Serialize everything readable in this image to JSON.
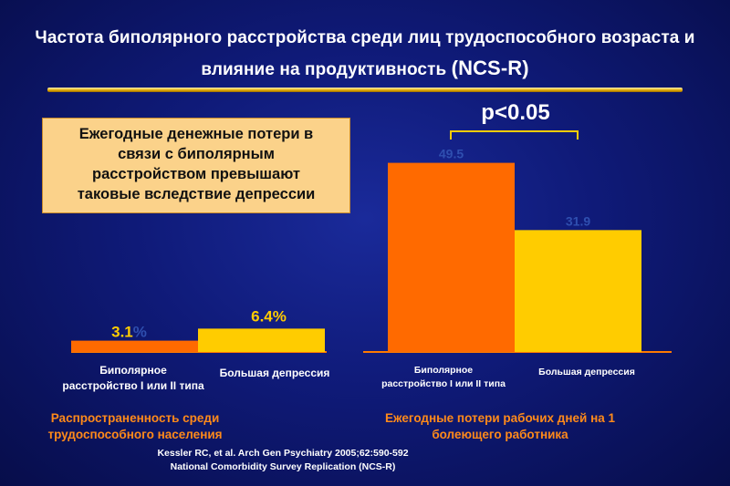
{
  "title": {
    "line1": "Частота биполярного расстройства среди лиц трудоспособного возраста и",
    "line2": "влияние на продуктивность",
    "source_tag": "(NCS-R)"
  },
  "callout": {
    "line1": "Ежегодные денежные потери в",
    "line2": "связи с биполярным",
    "line3": "расстройством превышают",
    "line4": "таковые вследствие депрессии"
  },
  "p_value": "p<0.05",
  "colors": {
    "bipolar": "#ff6a00",
    "depression": "#ffcc00",
    "axis": "#ff7a00",
    "label_dark": "#2f4fb0"
  },
  "chart_data": [
    {
      "type": "bar",
      "categories": [
        "Биполярное расстройство I или II типа",
        "Большая депрессия"
      ],
      "values": [
        3.1,
        6.4
      ],
      "data_labels": [
        "3.1%",
        "6.4%"
      ],
      "title": "Распространенность среди трудоспособного населения",
      "unit": "%"
    },
    {
      "type": "bar",
      "categories": [
        "Биполярное расстройство I или II типа",
        "Большая депрессия"
      ],
      "values": [
        49.5,
        31.9
      ],
      "data_labels": [
        "49.5",
        "31.9"
      ],
      "title": "Ежегодные потери рабочих дней на 1 болеющего работника"
    }
  ],
  "categories_text": {
    "left_bipolar_l1": "Биполярное",
    "left_bipolar_l2": "расстройство I или II типа",
    "left_depression": "Большая депрессия",
    "right_bipolar_l1": "Биполярное",
    "right_bipolar_l2": "расстройство I или II типа",
    "right_depression": "Большая депрессия"
  },
  "group_labels": {
    "left_l1": "Распространенность  среди",
    "left_l2": "трудоспособного населения",
    "right_l1": "Ежегодные потери рабочих дней на 1",
    "right_l2": "болеющего работника"
  },
  "reference": {
    "line1": "Kessler RC, et al. Arch Gen Psychiatry 2005;62:590-592",
    "line2": "National Comorbidity Survey Replication (NCS-R)"
  }
}
